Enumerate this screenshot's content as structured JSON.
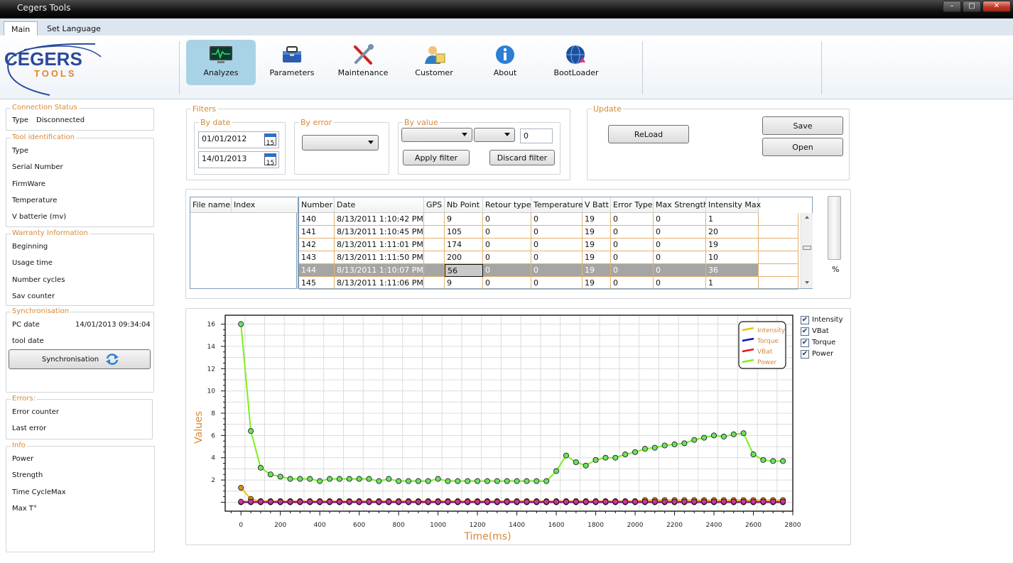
{
  "window": {
    "title": "Cegers Tools"
  },
  "tabs": [
    {
      "label": "Main"
    },
    {
      "label": "Set Language"
    }
  ],
  "logo": {
    "line1": "CEGERS",
    "line2": "TOOLS"
  },
  "toolbar": [
    {
      "label": "Analyzes",
      "icon": "monitor-icon",
      "active": true
    },
    {
      "label": "Parameters",
      "icon": "toolbox-icon"
    },
    {
      "label": "Maintenance",
      "icon": "tools-icon"
    },
    {
      "label": "Customer",
      "icon": "customer-icon"
    },
    {
      "label": "About",
      "icon": "info-icon"
    },
    {
      "label": "BootLoader",
      "icon": "globe-icon"
    }
  ],
  "connection": {
    "title": "Connection Status",
    "type_label": "Type",
    "type_value": "Disconnected"
  },
  "tool_identification": {
    "title": "Tool identification",
    "fields": [
      "Type",
      "Serial Number",
      "FirmWare",
      "Temperature",
      "V batterie (mv)"
    ]
  },
  "warranty": {
    "title": "Warranty Information",
    "fields": [
      "Beginning",
      "Usage time",
      "Number cycles",
      "Sav counter"
    ]
  },
  "synchronisation": {
    "title": "Synchronisation",
    "pc_date_label": "PC date",
    "pc_date_value": "14/01/2013 09:34:04",
    "tool_date_label": "tool date",
    "button_label": "Synchronisation"
  },
  "errors": {
    "title": "Errors:",
    "fields": [
      "Error counter",
      "Last error"
    ]
  },
  "info": {
    "title": "Info",
    "fields": [
      "Power",
      "Strength",
      "Time CycleMax",
      "Max T°"
    ]
  },
  "filters": {
    "title": "Filters",
    "by_date": {
      "title": "By date",
      "from": "01/01/2012",
      "to": "14/01/2013",
      "calendar_day": "15"
    },
    "by_error": {
      "title": "By error"
    },
    "by_value": {
      "title": "By value",
      "value": "0"
    },
    "apply_label": "Apply filter",
    "discard_label": "Discard filter"
  },
  "update": {
    "title": "Update",
    "reload_label": "ReLoad",
    "save_label": "Save",
    "open_label": "Open"
  },
  "files_table": {
    "headers": [
      "File name",
      "Index"
    ]
  },
  "records_table": {
    "headers": [
      "Number",
      "Date",
      "GPS",
      "Nb Point",
      "Retour type",
      "Temperature",
      "V Batt",
      "Error Type",
      "Max Strength",
      "Intensity Max"
    ],
    "rows": [
      [
        "140",
        "8/13/2011 1:10:42 PM",
        "",
        "9",
        "0",
        "0",
        "19",
        "0",
        "0",
        "1"
      ],
      [
        "141",
        "8/13/2011 1:10:45 PM",
        "",
        "105",
        "0",
        "0",
        "19",
        "0",
        "0",
        "20"
      ],
      [
        "142",
        "8/13/2011 1:11:01 PM",
        "",
        "174",
        "0",
        "0",
        "19",
        "0",
        "0",
        "19"
      ],
      [
        "143",
        "8/13/2011 1:11:50 PM",
        "",
        "200",
        "0",
        "0",
        "19",
        "0",
        "0",
        "10"
      ],
      [
        "144",
        "8/13/2011 1:10:07 PM",
        "",
        "56",
        "0",
        "0",
        "19",
        "0",
        "0",
        "36"
      ],
      [
        "145",
        "8/13/2011 1:11:06 PM",
        "",
        "9",
        "0",
        "0",
        "19",
        "0",
        "0",
        "1"
      ]
    ],
    "selected_row": 4
  },
  "progress": {
    "unit": "%"
  },
  "checkboxes": [
    {
      "label": "Intensity",
      "checked": true
    },
    {
      "label": "VBat",
      "checked": true
    },
    {
      "label": "Torque",
      "checked": true
    },
    {
      "label": "Power",
      "checked": true
    }
  ],
  "chart_data": {
    "type": "line",
    "xlabel": "Time(ms)",
    "ylabel": "Values",
    "xlim": [
      -80,
      2800
    ],
    "ylim": [
      -0.8,
      16.8
    ],
    "xticks": [
      0,
      200,
      400,
      600,
      800,
      1000,
      1200,
      1400,
      1600,
      1800,
      2000,
      2200,
      2400,
      2600,
      2800
    ],
    "yticks": [
      2,
      4,
      6,
      8,
      10,
      12,
      14,
      16
    ],
    "grid": true,
    "legend_position": "top-right",
    "x": [
      0,
      50,
      100,
      150,
      200,
      250,
      300,
      350,
      400,
      450,
      500,
      550,
      600,
      650,
      700,
      750,
      800,
      850,
      900,
      950,
      1000,
      1050,
      1100,
      1150,
      1200,
      1250,
      1300,
      1350,
      1400,
      1450,
      1500,
      1550,
      1600,
      1650,
      1700,
      1750,
      1800,
      1850,
      1900,
      1950,
      2000,
      2050,
      2100,
      2150,
      2200,
      2250,
      2300,
      2350,
      2400,
      2450,
      2500,
      2550,
      2600,
      2650,
      2700,
      2750
    ],
    "series": [
      {
        "name": "Intensity",
        "color": "#f0c20a",
        "marker": "#d98c1a",
        "values": [
          1.3,
          0.3,
          0.1,
          0.1,
          0.1,
          0.1,
          0.1,
          0.1,
          0.1,
          0.1,
          0.1,
          0.1,
          0.1,
          0.1,
          0.1,
          0.1,
          0.1,
          0.1,
          0.1,
          0.1,
          0.1,
          0.1,
          0.1,
          0.1,
          0.1,
          0.1,
          0.1,
          0.1,
          0.1,
          0.1,
          0.1,
          0.1,
          0.1,
          0.1,
          0.1,
          0.1,
          0.1,
          0.1,
          0.1,
          0.1,
          0.1,
          0.2,
          0.2,
          0.2,
          0.2,
          0.2,
          0.2,
          0.2,
          0.2,
          0.2,
          0.2,
          0.2,
          0.2,
          0.2,
          0.2,
          0.2
        ]
      },
      {
        "name": "Torque",
        "color": "#1010c8",
        "marker": "#1010c8",
        "values": [
          0,
          0,
          0,
          0,
          0,
          0,
          0,
          0,
          0,
          0,
          0,
          0,
          0,
          0,
          0,
          0,
          0,
          0,
          0,
          0,
          0,
          0,
          0,
          0,
          0,
          0,
          0,
          0,
          0,
          0,
          0,
          0,
          0,
          0,
          0,
          0,
          0,
          0,
          0,
          0,
          0,
          0,
          0,
          0,
          0,
          0,
          0,
          0,
          0,
          0,
          0,
          0,
          0,
          0,
          0,
          0
        ]
      },
      {
        "name": "VBat",
        "color": "#e8102a",
        "marker": "#cc3399",
        "values": [
          0.05,
          0.05,
          0.05,
          0.05,
          0.05,
          0.05,
          0.05,
          0.05,
          0.05,
          0.05,
          0.05,
          0.05,
          0.05,
          0.05,
          0.05,
          0.05,
          0.05,
          0.05,
          0.05,
          0.05,
          0.05,
          0.05,
          0.05,
          0.05,
          0.05,
          0.05,
          0.05,
          0.05,
          0.05,
          0.05,
          0.05,
          0.05,
          0.05,
          0.05,
          0.05,
          0.05,
          0.05,
          0.05,
          0.05,
          0.05,
          0.05,
          0.05,
          0.05,
          0.05,
          0.05,
          0.05,
          0.05,
          0.05,
          0.05,
          0.05,
          0.05,
          0.05,
          0.05,
          0.05,
          0.05,
          0.05
        ]
      },
      {
        "name": "Power",
        "color": "#7ef01a",
        "marker": "#6fdc6f",
        "values": [
          16.0,
          6.4,
          3.1,
          2.5,
          2.3,
          2.1,
          2.1,
          2.1,
          1.9,
          2.1,
          2.1,
          2.1,
          2.1,
          2.1,
          1.9,
          2.1,
          1.9,
          1.9,
          1.9,
          1.9,
          2.1,
          1.9,
          1.9,
          1.9,
          1.9,
          1.9,
          1.9,
          1.9,
          1.9,
          1.9,
          1.9,
          1.9,
          2.8,
          4.2,
          3.6,
          3.3,
          3.8,
          4.0,
          4.0,
          4.3,
          4.5,
          4.8,
          4.9,
          5.1,
          5.2,
          5.3,
          5.6,
          5.8,
          6.0,
          5.9,
          6.1,
          6.2,
          4.3,
          3.8,
          3.7,
          3.7
        ]
      }
    ]
  }
}
